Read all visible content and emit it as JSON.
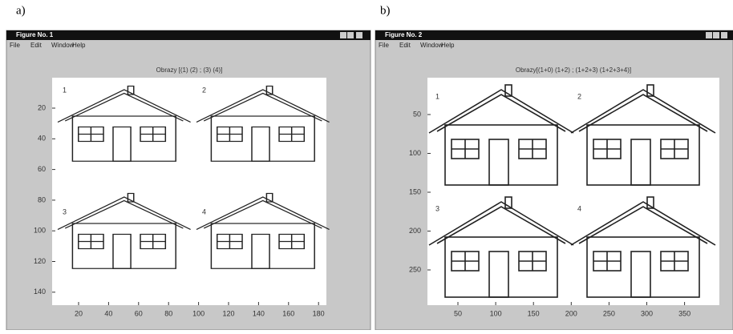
{
  "labels": [
    "a)",
    "b)"
  ],
  "windows": [
    {
      "title": "Figure No. 1",
      "menu": [
        "File",
        "Edit",
        "Window",
        "Help"
      ],
      "axes": {
        "title": "Obrazy [(1) (2) ; (3) (4)]",
        "yticks": [
          20,
          40,
          60,
          80,
          100,
          120,
          140
        ],
        "xticks": [
          20,
          40,
          60,
          80,
          100,
          120,
          140,
          160,
          180
        ],
        "panels": [
          "1",
          "2",
          "3",
          "4"
        ]
      }
    },
    {
      "title": "Figure No. 2",
      "menu": [
        "File",
        "Edit",
        "Window",
        "Help"
      ],
      "axes": {
        "title": "Obrazy[(1+0) (1+2) ; (1+2+3) (1+2+3+4)]",
        "yticks": [
          50,
          100,
          150,
          200,
          250
        ],
        "xticks": [
          50,
          100,
          150,
          200,
          250,
          300,
          350
        ],
        "panels": [
          "1",
          "2",
          "3",
          "4"
        ]
      }
    }
  ]
}
